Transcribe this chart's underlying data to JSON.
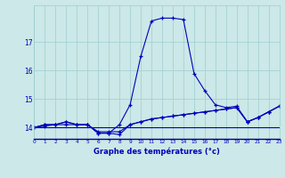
{
  "xlabel": "Graphe des températures (°c)",
  "hours": [
    0,
    1,
    2,
    3,
    4,
    5,
    6,
    7,
    8,
    9,
    10,
    11,
    12,
    13,
    14,
    15,
    16,
    17,
    18,
    19,
    20,
    21,
    22,
    23
  ],
  "line_main": [
    14.0,
    14.1,
    14.1,
    14.2,
    14.1,
    14.1,
    13.8,
    13.8,
    14.1,
    14.8,
    16.5,
    17.75,
    17.85,
    17.85,
    17.8,
    15.9,
    15.3,
    14.8,
    14.7,
    14.75,
    14.2,
    14.35,
    14.55,
    14.75
  ],
  "line_flat1": [
    14.0,
    14.0,
    14.0,
    14.0,
    14.0,
    14.0,
    14.0,
    14.0,
    14.0,
    14.0,
    14.0,
    14.0,
    14.0,
    14.0,
    14.0,
    14.0,
    14.0,
    14.0,
    14.0,
    14.0,
    14.0,
    14.0,
    14.0,
    14.0
  ],
  "line_diag1": [
    14.0,
    14.05,
    14.1,
    14.1,
    14.1,
    14.1,
    13.85,
    13.85,
    13.85,
    14.1,
    14.2,
    14.3,
    14.35,
    14.4,
    14.45,
    14.5,
    14.55,
    14.6,
    14.65,
    14.7,
    14.2,
    14.35,
    14.55,
    14.75
  ],
  "line_diag2": [
    14.0,
    14.1,
    14.1,
    14.2,
    14.1,
    14.1,
    13.8,
    13.8,
    13.75,
    14.1,
    14.2,
    14.3,
    14.35,
    14.4,
    14.45,
    14.5,
    14.55,
    14.6,
    14.65,
    14.7,
    14.2,
    14.35,
    14.55,
    14.75
  ],
  "bg_color": "#cce8e8",
  "line_color": "#0000bb",
  "grid_color": "#9ecece",
  "ylim": [
    13.6,
    18.3
  ],
  "xlim": [
    0,
    23
  ],
  "yticks": [
    14,
    15,
    16,
    17
  ],
  "xticks": [
    0,
    1,
    2,
    3,
    4,
    5,
    6,
    7,
    8,
    9,
    10,
    11,
    12,
    13,
    14,
    15,
    16,
    17,
    18,
    19,
    20,
    21,
    22,
    23
  ]
}
